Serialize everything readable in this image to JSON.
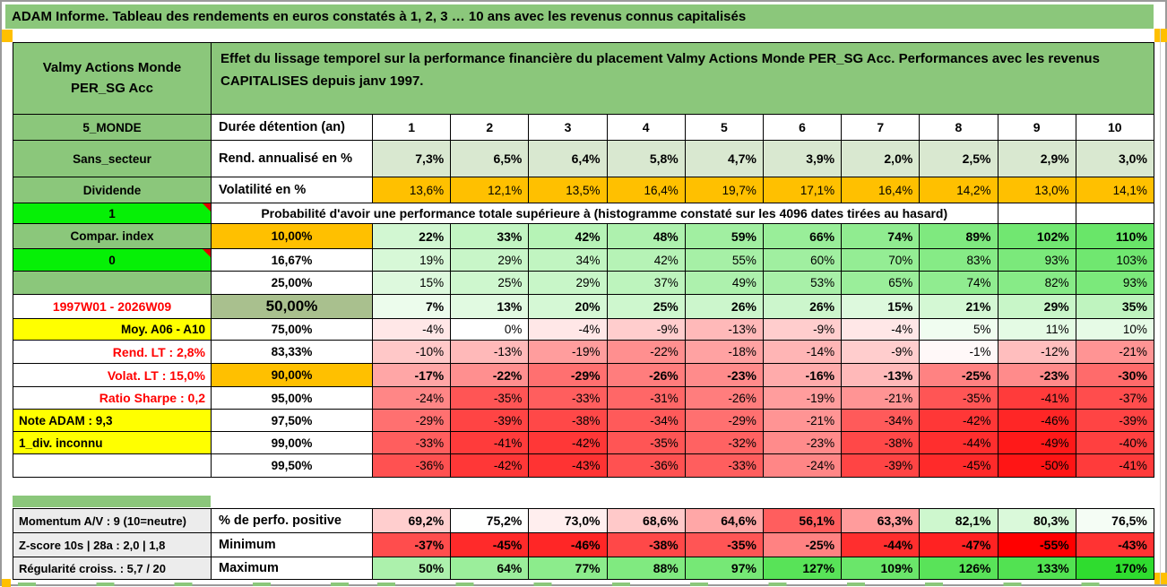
{
  "title": "ADAM Informe. Tableau des rendements en euros constatés à 1, 2, 3 … 10 ans avec les revenus connus capitalisés",
  "header": {
    "product": "Valmy Actions Monde PER_SG Acc",
    "description": "Effet du lissage temporel sur la performance financière du placement Valmy Actions Monde PER_SG Acc. Performances avec les revenus CAPITALISES depuis janv 1997."
  },
  "colors": {
    "header_green": "#8BC77B",
    "bright_green": "#06F006",
    "orange": "#FFC000",
    "yellow": "#FFFF00",
    "sage": "#D9E8D0",
    "mid_green_50": "#A9C08E",
    "gray_label": "#ECECEC",
    "red_text": "#FF0000",
    "positive_target": "#2FDC2F",
    "negative_target": "#FF0000"
  },
  "main_table": {
    "rows": [
      {
        "kind": "duration",
        "label": "5_MONDE",
        "label_style": "green",
        "measure": "Durée détention (an)",
        "cell2_style": "measure",
        "values": [
          "1",
          "2",
          "3",
          "4",
          "5",
          "6",
          "7",
          "8",
          "9",
          "10"
        ],
        "values_bold": true,
        "color_mode": "none"
      },
      {
        "kind": "annualized",
        "label": "Sans_secteur",
        "label_style": "green",
        "measure": "Rend. annualisé en %",
        "cell2_style": "measure",
        "values": [
          "7,3%",
          "6,5%",
          "6,4%",
          "5,8%",
          "4,7%",
          "3,9%",
          "2,0%",
          "2,5%",
          "2,9%",
          "3,0%"
        ],
        "values_bold": true,
        "color_mode": "sage"
      },
      {
        "kind": "volatility",
        "label": "Dividende",
        "label_style": "green",
        "measure": "Volatilité en %",
        "cell2_style": "measure",
        "values": [
          "13,6%",
          "12,1%",
          "13,5%",
          "16,4%",
          "19,7%",
          "17,1%",
          "16,4%",
          "14,2%",
          "13,0%",
          "14,1%"
        ],
        "values_bold": false,
        "color_mode": "orange"
      },
      {
        "kind": "prob-note",
        "label": "1",
        "label_style": "bright",
        "comment_marker": true,
        "note": "Probabilité d'avoir une performance totale supérieure à (histogramme constaté sur les 4096 dates tirées au hasard)",
        "trailing_empty": 2
      },
      {
        "kind": "p10",
        "label": "Compar. index",
        "label_style": "green",
        "percentile": "10,00%",
        "cell2_style": "pct-orange",
        "values": [
          "22%",
          "33%",
          "42%",
          "48%",
          "59%",
          "66%",
          "74%",
          "89%",
          "102%",
          "110%"
        ],
        "values_bold": true,
        "color_mode": "div"
      },
      {
        "kind": "p16",
        "label": "0",
        "label_style": "bright",
        "comment_marker": true,
        "percentile": "16,67%",
        "cell2_style": "pct",
        "values": [
          "19%",
          "29%",
          "34%",
          "42%",
          "55%",
          "60%",
          "70%",
          "83%",
          "93%",
          "103%"
        ],
        "values_bold": false,
        "color_mode": "div"
      },
      {
        "kind": "p25",
        "label": "",
        "label_style": "green",
        "percentile": "25,00%",
        "cell2_style": "pct",
        "values": [
          "15%",
          "25%",
          "29%",
          "37%",
          "49%",
          "53%",
          "65%",
          "74%",
          "82%",
          "93%"
        ],
        "values_bold": false,
        "color_mode": "div"
      },
      {
        "kind": "p50",
        "label": "1997W01 - 2026W09",
        "label_style": "red-center",
        "percentile": "50,00%",
        "cell2_style": "pct-mid",
        "values": [
          "7%",
          "13%",
          "20%",
          "25%",
          "26%",
          "26%",
          "15%",
          "21%",
          "29%",
          "35%"
        ],
        "values_bold": true,
        "color_mode": "div"
      },
      {
        "kind": "p75",
        "label": "Moy. A06 - A10",
        "label_style": "yellow-right",
        "percentile": "75,00%",
        "cell2_style": "pct",
        "values": [
          "-4%",
          "0%",
          "-4%",
          "-9%",
          "-13%",
          "-9%",
          "-4%",
          "5%",
          "11%",
          "10%"
        ],
        "values_bold": false,
        "color_mode": "div"
      },
      {
        "kind": "p83",
        "label": "Rend. LT :    2,8%",
        "label_style": "red-right",
        "percentile": "83,33%",
        "cell2_style": "pct",
        "values": [
          "-10%",
          "-13%",
          "-19%",
          "-22%",
          "-18%",
          "-14%",
          "-9%",
          "-1%",
          "-12%",
          "-21%"
        ],
        "values_bold": false,
        "color_mode": "div"
      },
      {
        "kind": "p90",
        "label": "Volat. LT :    15,0%",
        "label_style": "red-right",
        "percentile": "90,00%",
        "cell2_style": "pct-orange",
        "values": [
          "-17%",
          "-22%",
          "-29%",
          "-26%",
          "-23%",
          "-16%",
          "-13%",
          "-25%",
          "-23%",
          "-30%"
        ],
        "values_bold": true,
        "color_mode": "div"
      },
      {
        "kind": "p95",
        "label": "Ratio Sharpe :    0,2",
        "label_style": "red-right",
        "percentile": "95,00%",
        "cell2_style": "pct",
        "values": [
          "-24%",
          "-35%",
          "-33%",
          "-31%",
          "-26%",
          "-19%",
          "-21%",
          "-35%",
          "-41%",
          "-37%"
        ],
        "values_bold": false,
        "color_mode": "div"
      },
      {
        "kind": "p975",
        "label": "Note ADAM : 9,3",
        "label_style": "yellow-left",
        "percentile": "97,50%",
        "cell2_style": "pct",
        "values": [
          "-29%",
          "-39%",
          "-38%",
          "-34%",
          "-29%",
          "-21%",
          "-34%",
          "-42%",
          "-46%",
          "-39%"
        ],
        "values_bold": false,
        "color_mode": "div"
      },
      {
        "kind": "p99",
        "label": "1_div. inconnu",
        "label_style": "yellow-left",
        "percentile": "99,00%",
        "cell2_style": "pct",
        "values": [
          "-33%",
          "-41%",
          "-42%",
          "-35%",
          "-32%",
          "-23%",
          "-38%",
          "-44%",
          "-49%",
          "-40%"
        ],
        "values_bold": false,
        "color_mode": "div"
      },
      {
        "kind": "p995",
        "label": "",
        "label_style": "blank",
        "percentile": "99,50%",
        "cell2_style": "pct",
        "values": [
          "-36%",
          "-42%",
          "-43%",
          "-36%",
          "-33%",
          "-24%",
          "-39%",
          "-45%",
          "-50%",
          "-41%"
        ],
        "values_bold": false,
        "color_mode": "div"
      }
    ]
  },
  "bottom_table": {
    "rows": [
      {
        "kind": "perfpos",
        "label": "Momentum A/V : 9 (10=neutre)",
        "label_style": "gray",
        "measure": "% de perfo. positive",
        "cell2_style": "measure",
        "values": [
          "69,2%",
          "75,2%",
          "73,0%",
          "68,6%",
          "64,6%",
          "56,1%",
          "63,3%",
          "82,1%",
          "80,3%",
          "76,5%"
        ],
        "values_bold": true,
        "color_mode": "perfpos"
      },
      {
        "kind": "minimum",
        "label": "Z-score 10s | 28a : 2,0 | 1,8",
        "label_style": "gray",
        "measure": "Minimum",
        "cell2_style": "measure",
        "values": [
          "-37%",
          "-45%",
          "-46%",
          "-38%",
          "-35%",
          "-25%",
          "-44%",
          "-47%",
          "-55%",
          "-43%"
        ],
        "values_bold": true,
        "color_mode": "div"
      },
      {
        "kind": "maximum",
        "label": "Régularité croiss. : 5,7 / 20",
        "label_style": "gray",
        "measure": "Maximum",
        "cell2_style": "measure",
        "values": [
          "50%",
          "64%",
          "77%",
          "88%",
          "97%",
          "127%",
          "109%",
          "126%",
          "133%",
          "170%"
        ],
        "values_bold": true,
        "color_mode": "div"
      }
    ]
  }
}
